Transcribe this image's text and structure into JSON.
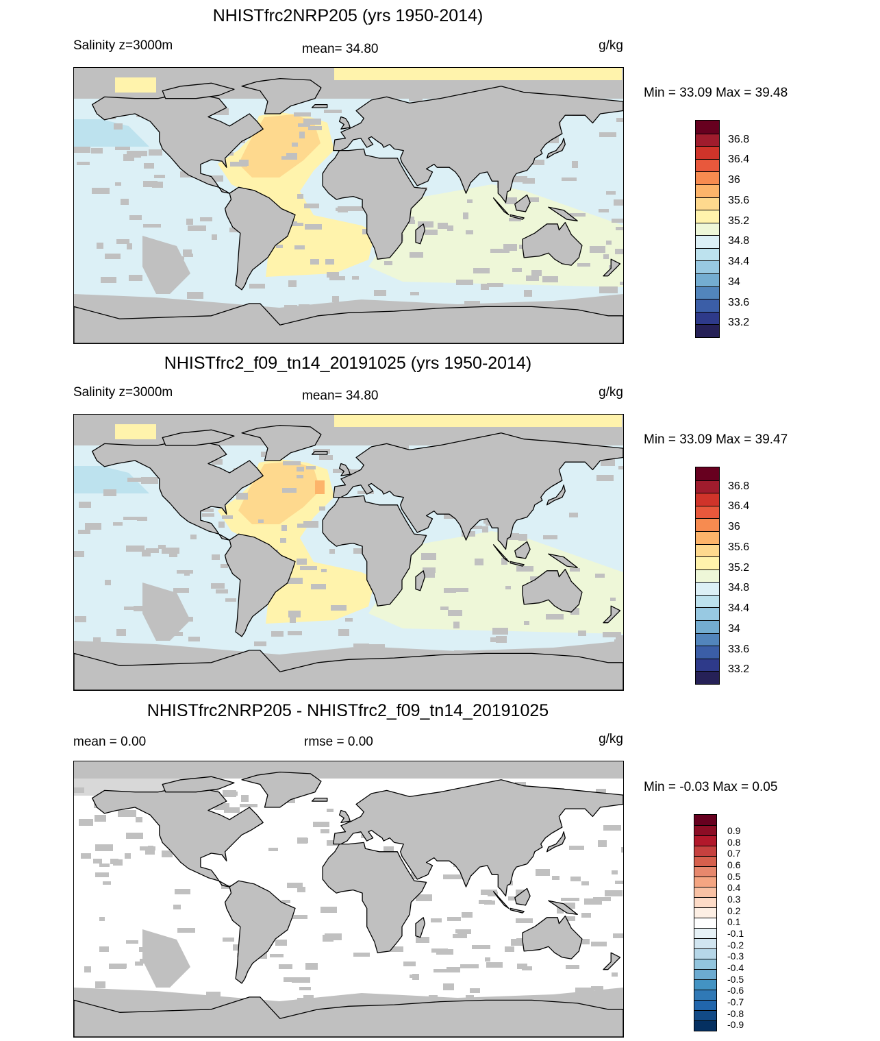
{
  "panels": [
    {
      "title": "NHISTfrc2NRP205 (yrs 1950-2014)",
      "left_label": "Salinity z=3000m",
      "center_label": "mean=  34.80",
      "units": "g/kg",
      "minmax": "Min =  33.09 Max =  39.48",
      "colorbar": {
        "colors": [
          "#67001f",
          "#a01c2d",
          "#d0342a",
          "#e8583c",
          "#f78b50",
          "#fdb46a",
          "#fed98e",
          "#fff3ac",
          "#eef7d8",
          "#dcf0f6",
          "#bde2ee",
          "#98c9e2",
          "#74add1",
          "#5285bc",
          "#3b5ea7",
          "#2e3a8a",
          "#262157"
        ],
        "labels": [
          "36.8",
          "36.4",
          "36",
          "35.6",
          "35.2",
          "34.8",
          "34.4",
          "34",
          "33.6",
          "33.2"
        ]
      },
      "map": {
        "type": "salinity",
        "variant": "a"
      }
    },
    {
      "title": "NHISTfrc2_f09_tn14_20191025 (yrs 1950-2014)",
      "left_label": "Salinity z=3000m",
      "center_label": "mean=  34.80",
      "units": "g/kg",
      "minmax": "Min =  33.09 Max =  39.47",
      "colorbar": {
        "colors": [
          "#67001f",
          "#a01c2d",
          "#d0342a",
          "#e8583c",
          "#f78b50",
          "#fdb46a",
          "#fed98e",
          "#fff3ac",
          "#eef7d8",
          "#dcf0f6",
          "#bde2ee",
          "#98c9e2",
          "#74add1",
          "#5285bc",
          "#3b5ea7",
          "#2e3a8a",
          "#262157"
        ],
        "labels": [
          "36.8",
          "36.4",
          "36",
          "35.6",
          "35.2",
          "34.8",
          "34.4",
          "34",
          "33.6",
          "33.2"
        ]
      },
      "map": {
        "type": "salinity",
        "variant": "b"
      }
    },
    {
      "title": "NHISTfrc2NRP205 - NHISTfrc2_f09_tn14_20191025",
      "left_label": "mean =    0.00",
      "center_label": "rmse =    0.00",
      "units": "g/kg",
      "minmax": "Min =  -0.03 Max =    0.05",
      "colorbar": {
        "colors": [
          "#67001f",
          "#8c0d25",
          "#b2182b",
          "#c6413f",
          "#d6604d",
          "#e7886d",
          "#f4a582",
          "#f8c1a4",
          "#fddbc7",
          "#fdefe4",
          "#ffffff",
          "#e6f1f6",
          "#d1e5f0",
          "#b6d7e8",
          "#92c5de",
          "#6cabd1",
          "#4393c3",
          "#3079b6",
          "#2166ac",
          "#124a86",
          "#053061"
        ],
        "labels": [
          "0.9",
          "0.8",
          "0.7",
          "0.6",
          "0.5",
          "0.4",
          "0.3",
          "0.2",
          "0.1",
          "-0.1",
          "-0.2",
          "-0.3",
          "-0.4",
          "-0.5",
          "-0.6",
          "-0.7",
          "-0.8",
          "-0.9"
        ]
      },
      "map": {
        "type": "difference",
        "variant": "c"
      }
    }
  ]
}
